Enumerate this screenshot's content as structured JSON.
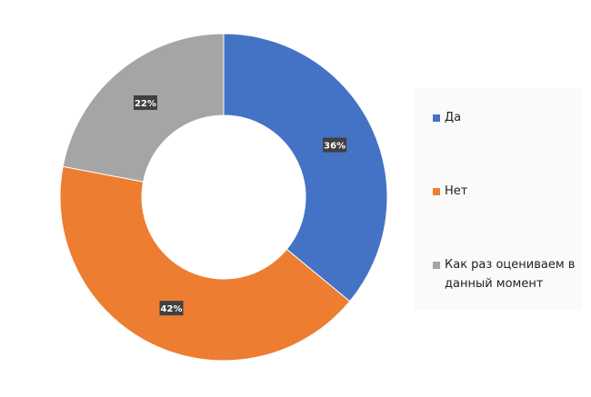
{
  "chart_data": {
    "type": "pie",
    "subtype": "donut",
    "title": "",
    "categories": [
      "Да",
      "Нет",
      "Как раз оцениваем в данный момент"
    ],
    "values": [
      36,
      42,
      22
    ],
    "labels": [
      "36%",
      "42%",
      "22%"
    ],
    "colors": [
      "#4472c4",
      "#ed7d31",
      "#a5a5a5"
    ],
    "legend_position": "right"
  }
}
